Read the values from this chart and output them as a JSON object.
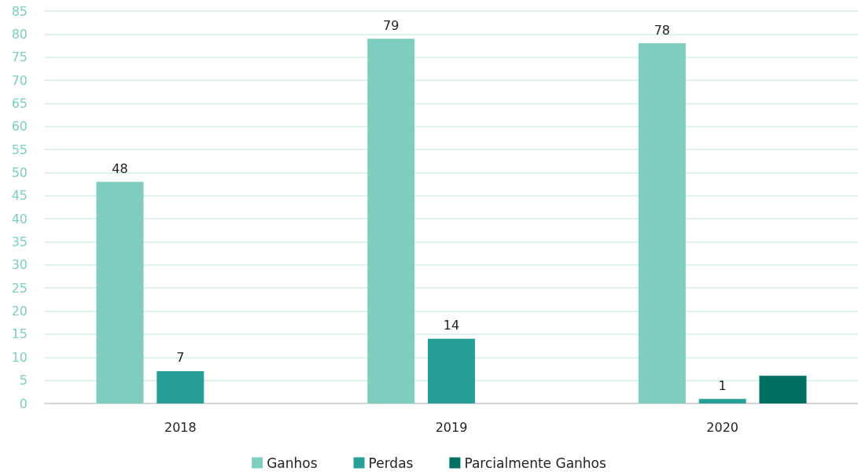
{
  "chart_data": {
    "type": "bar",
    "categories": [
      "2018",
      "2019",
      "2020"
    ],
    "series": [
      {
        "name": "Ganhos",
        "color": "#7fcdbe",
        "values": [
          48,
          79,
          78
        ],
        "value_labels": [
          "48",
          "79",
          "78"
        ]
      },
      {
        "name": "Perdas",
        "color": "#26a096",
        "values": [
          7,
          14,
          1
        ],
        "value_labels": [
          "7",
          "14",
          "1"
        ]
      },
      {
        "name": "Parcialmente Ganhos",
        "color": "#007060",
        "values": [
          null,
          null,
          6
        ],
        "value_labels": [
          null,
          null,
          null
        ]
      }
    ],
    "ylim": [
      0,
      85
    ],
    "yticks": [
      0,
      5,
      10,
      15,
      20,
      25,
      30,
      35,
      40,
      45,
      50,
      55,
      60,
      65,
      70,
      75,
      80,
      85
    ],
    "grid": "y",
    "legend": "bottom"
  }
}
